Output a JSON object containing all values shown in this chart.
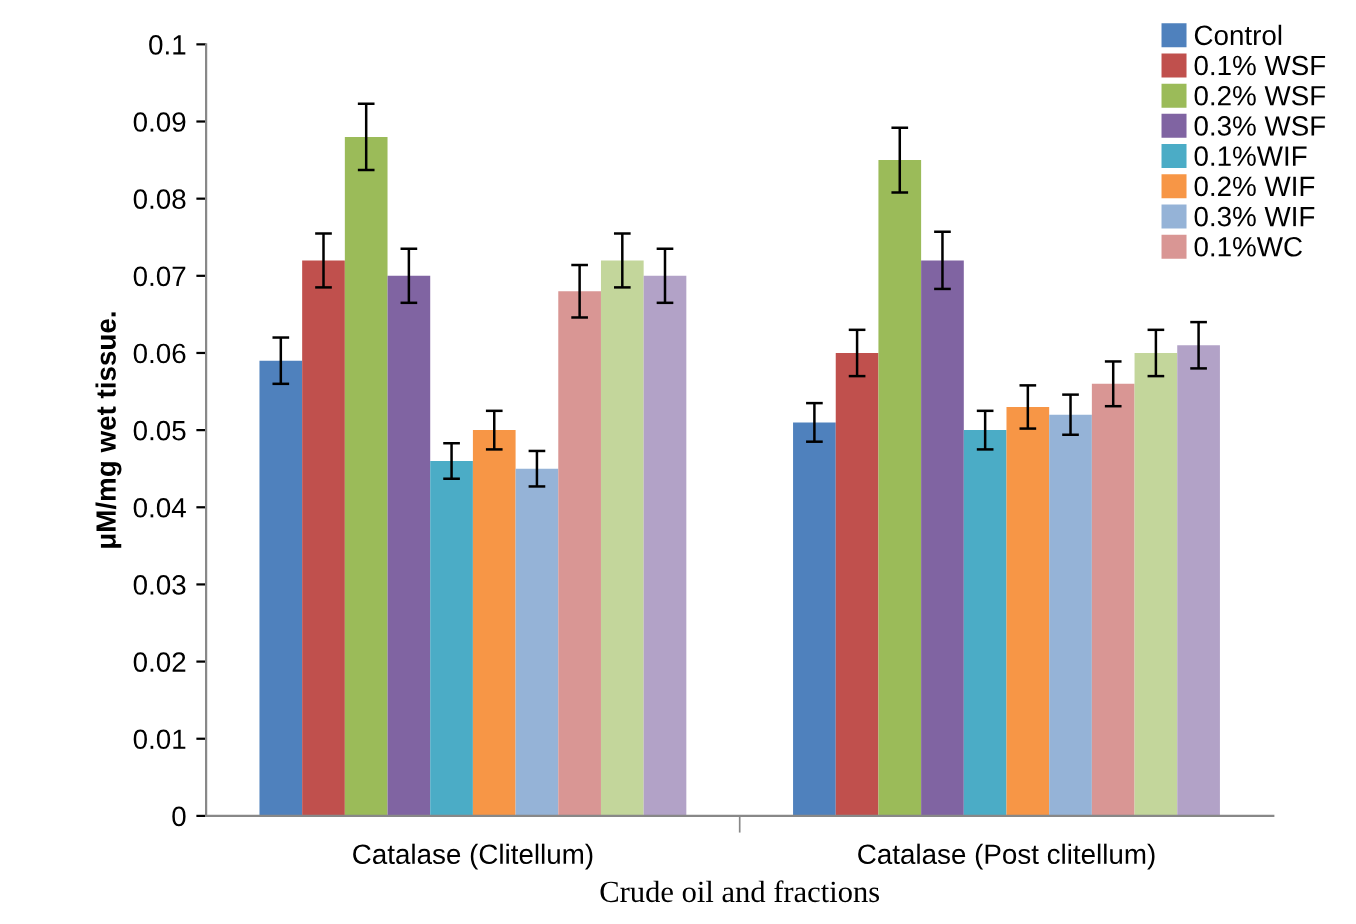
{
  "chart_data": {
    "type": "bar",
    "categories": [
      "Catalase (Clitellum)",
      "Catalase (Post clitellum)"
    ],
    "xlabel": "Crude oil and fractions",
    "ylabel": "μM/mg wet tissue.",
    "ylim": [
      0,
      0.1
    ],
    "yticks": [
      {
        "value": 0,
        "label": "0"
      },
      {
        "value": 0.01,
        "label": "0.01"
      },
      {
        "value": 0.02,
        "label": "0.02"
      },
      {
        "value": 0.03,
        "label": "0.03"
      },
      {
        "value": 0.04,
        "label": "0.04"
      },
      {
        "value": 0.05,
        "label": "0.05"
      },
      {
        "value": 0.06,
        "label": "0.06"
      },
      {
        "value": 0.07,
        "label": "0.07"
      },
      {
        "value": 0.08,
        "label": "0.08"
      },
      {
        "value": 0.09,
        "label": "0.09"
      },
      {
        "value": 0.1,
        "label": "0.1"
      }
    ],
    "grid": false,
    "legend": "top right",
    "series": [
      {
        "name": "Control",
        "color": "#4f81bd",
        "values": [
          0.059,
          0.051
        ],
        "errors": [
          0.003,
          0.0025
        ]
      },
      {
        "name": "0.1% WSF",
        "color": "#c0504d",
        "values": [
          0.072,
          0.06
        ],
        "errors": [
          0.0035,
          0.003
        ]
      },
      {
        "name": "0.2% WSF",
        "color": "#9bbb59",
        "values": [
          0.088,
          0.085
        ],
        "errors": [
          0.0043,
          0.0042
        ]
      },
      {
        "name": "0.3% WSF",
        "color": "#8064a2",
        "values": [
          0.07,
          0.072
        ],
        "errors": [
          0.0035,
          0.0037
        ]
      },
      {
        "name": "0.1%WIF",
        "color": "#4bacc6",
        "values": [
          0.046,
          0.05
        ],
        "errors": [
          0.0023,
          0.0025
        ]
      },
      {
        "name": "0.2% WIF",
        "color": "#f79646",
        "values": [
          0.05,
          0.053
        ],
        "errors": [
          0.0025,
          0.0028
        ]
      },
      {
        "name": "0.3% WIF",
        "color": "#95b3d7",
        "values": [
          0.045,
          0.052
        ],
        "errors": [
          0.0023,
          0.0026
        ]
      },
      {
        "name": "0.1%WC",
        "color": "#d99694",
        "values": [
          0.068,
          0.056
        ],
        "errors": [
          0.0034,
          0.0029
        ]
      },
      {
        "color": "#c3d69b",
        "values": [
          0.072,
          0.06
        ],
        "errors": [
          0.0035,
          0.003
        ]
      },
      {
        "color": "#b2a2c7",
        "values": [
          0.07,
          0.061
        ],
        "errors": [
          0.0035,
          0.003
        ]
      }
    ]
  }
}
